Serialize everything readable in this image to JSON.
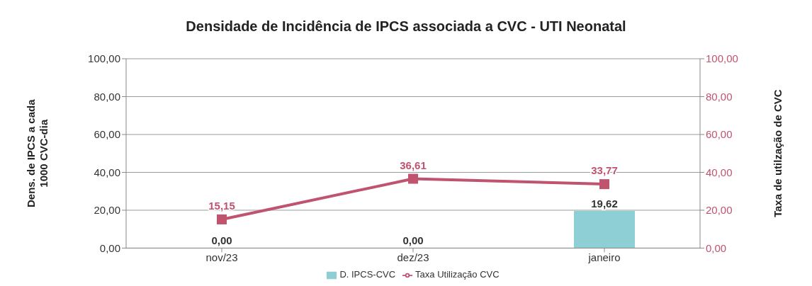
{
  "chart_data": {
    "type": "bar",
    "title": "Densidade de Incidência de IPCS associada a CVC - UTI Neonatal",
    "categories": [
      "nov/23",
      "dez/23",
      "janeiro"
    ],
    "series": [
      {
        "name": "D. IPCS-CVC",
        "color": "#8ecfd6",
        "values": [
          0,
          0,
          19.62
        ],
        "value_labels": [
          "0,00",
          "0,00",
          "19,62"
        ]
      },
      {
        "name": "Taxa Utilização CVC",
        "type": "line",
        "axis": "y2",
        "color": "#c0536e",
        "marker": "square",
        "values": [
          15.15,
          36.61,
          33.77
        ],
        "value_labels": [
          "15,15",
          "36,61",
          "33,77"
        ]
      }
    ],
    "ylabel": "Dens. de IPCS a cada\n1000 CVC-dia",
    "y2label": "Taxa de utilzação de CVC",
    "ylim": [
      0,
      100
    ],
    "yticks": [
      {
        "value": 0,
        "label": "0,00"
      },
      {
        "value": 20,
        "label": "20,00"
      },
      {
        "value": 40,
        "label": "40,00"
      },
      {
        "value": 60,
        "label": "60,00"
      },
      {
        "value": 80,
        "label": "80,00"
      },
      {
        "value": 100,
        "label": "100,00"
      }
    ],
    "y2lim": [
      0,
      100
    ],
    "y2ticks": [
      {
        "value": 0,
        "label": "0,00"
      },
      {
        "value": 20,
        "label": "20,00"
      },
      {
        "value": 40,
        "label": "40,00"
      },
      {
        "value": 60,
        "label": "60,00"
      },
      {
        "value": 80,
        "label": "80,00"
      },
      {
        "value": 100,
        "label": "100,00"
      }
    ],
    "grid": "y",
    "legend": "bottom"
  }
}
